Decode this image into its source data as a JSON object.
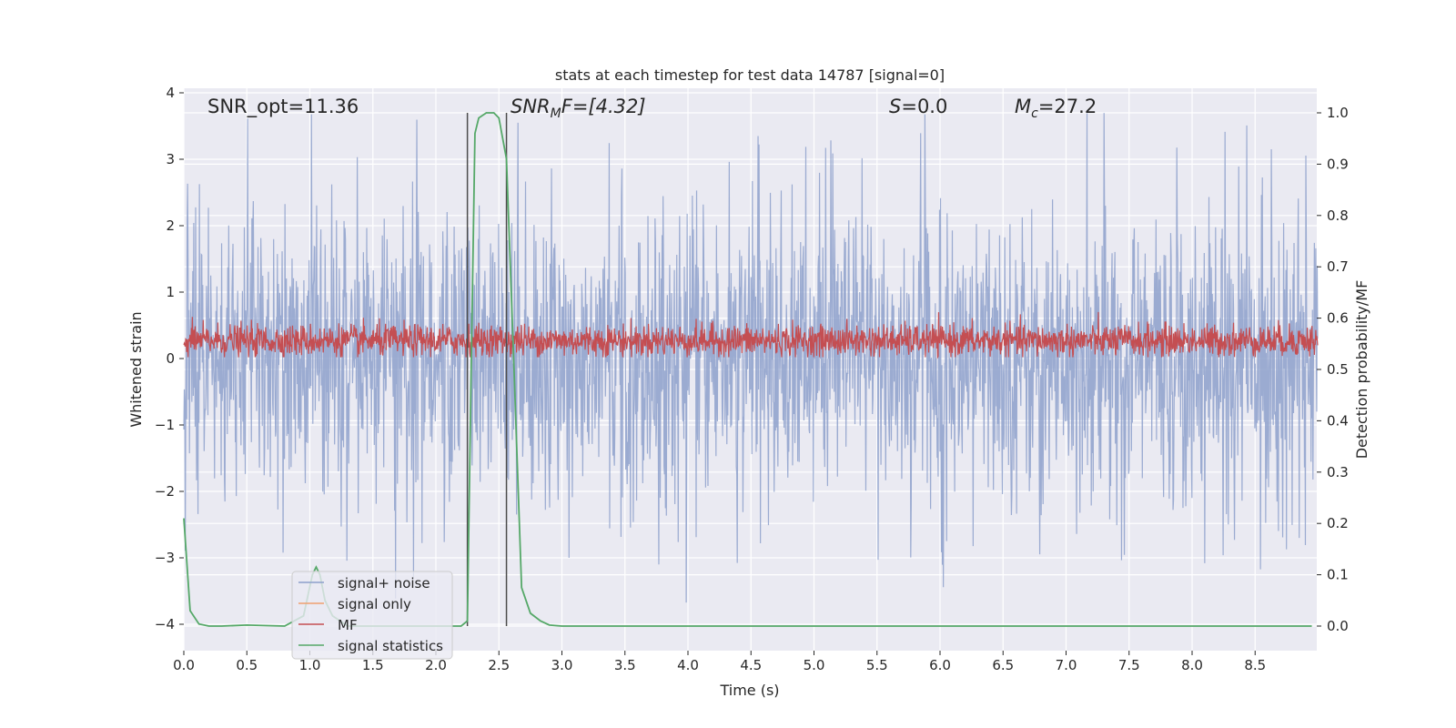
{
  "chart_data": {
    "type": "line",
    "title": "stats at each timestep for test data 14787 [signal=0]",
    "xlabel": "Time (s)",
    "ylabel": "Whitened strain",
    "ylabel_right": "Detection probability/MF",
    "xlim": [
      0.0,
      9.0
    ],
    "ylim": [
      -4.38,
      4.18
    ],
    "ylim_right": [
      -0.047,
      1.046
    ],
    "x_ticks": [
      "0.0",
      "0.5",
      "1.0",
      "1.5",
      "2.0",
      "2.5",
      "3.0",
      "3.5",
      "4.0",
      "4.5",
      "5.0",
      "5.5",
      "6.0",
      "6.5",
      "7.0",
      "7.5",
      "8.0",
      "8.5"
    ],
    "y_ticks": [
      "4",
      "3",
      "2",
      "1",
      "0",
      "−1",
      "−2",
      "−3",
      "−4"
    ],
    "y_right_ticks": [
      "1.0",
      "0.9",
      "0.8",
      "0.7",
      "0.6",
      "0.5",
      "0.4",
      "0.3",
      "0.2",
      "0.1",
      "0.0"
    ],
    "grid": true,
    "legend_position": "lower-left",
    "annotations": {
      "snr_opt": "SNR_opt=11.36",
      "snr_mf_pre": "SNR",
      "snr_mf_sub": "M",
      "snr_mf_post": "F=[4.32]",
      "s_var": "S",
      "s_val": "=0.0",
      "mc_var": "M",
      "mc_sub": "c",
      "mc_val": "=27.2"
    },
    "vertical_markers": [
      2.25,
      2.56
    ],
    "series": [
      {
        "name": "signal+ noise",
        "color": "#8da0cb",
        "description_range": [
          -2.0,
          2.0
        ],
        "peak_max": 3.7,
        "peak_min": -4.0
      },
      {
        "name": "signal only",
        "color": "#f0a070",
        "values": []
      },
      {
        "name": "MF",
        "color": "#c44e52",
        "range": [
          0.0,
          0.75
        ]
      },
      {
        "name": "signal statistics",
        "color": "#55a868",
        "x": [
          0.0,
          0.05,
          0.12,
          0.2,
          0.3,
          0.5,
          0.8,
          0.95,
          1.02,
          1.05,
          1.08,
          1.12,
          1.18,
          1.3,
          1.5,
          2.0,
          2.2,
          2.25,
          2.28,
          2.31,
          2.34,
          2.4,
          2.46,
          2.5,
          2.53,
          2.56,
          2.62,
          2.68,
          2.75,
          2.83,
          2.9,
          3.0,
          3.5,
          4.0,
          5.0,
          6.0,
          7.0,
          8.0,
          8.95
        ],
        "y": [
          0.21,
          0.03,
          0.004,
          0.0,
          0.0,
          0.002,
          0.0,
          0.02,
          0.1,
          0.115,
          0.1,
          0.05,
          0.02,
          0.0,
          0.0,
          0.0,
          0.0,
          0.01,
          0.5,
          0.96,
          0.99,
          1.0,
          1.0,
          0.99,
          0.95,
          0.91,
          0.5,
          0.075,
          0.025,
          0.01,
          0.002,
          0.0,
          0.0,
          0.0,
          0.0,
          0.0,
          0.0,
          0.0,
          0.0
        ]
      }
    ]
  }
}
